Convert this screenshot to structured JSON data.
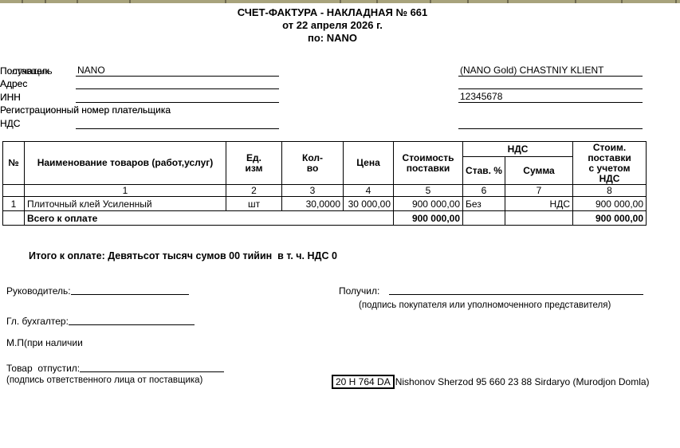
{
  "document": {
    "title_line1": "СЧЕТ-ФАКТУРА - НАКЛАДНАЯ № 661",
    "title_line2": "от 22 апреля 2026 г.",
    "title_line3": "по: NANO",
    "total_in_words": "Итого к оплате: Девятьсот тысяч сумов 00 тийин  в т. ч. НДС 0"
  },
  "supplier": {
    "label": "Поставщик",
    "name": "NANO",
    "address_label": "Адрес",
    "address": "",
    "inn_label": "ИНН",
    "inn": "",
    "reg_number_label": "Регистрационный номер плательщика",
    "vat_label": "НДС",
    "vat": ""
  },
  "receiver": {
    "label": "Получатель",
    "name": "(NANO Gold) CHASTNIY KLIENT",
    "address_label": "Адрес",
    "address": "",
    "inn_label": "ИНН",
    "inn": "12345678",
    "reg_number_label": "Регистрационный номер плательщика",
    "vat_label": "НДС",
    "vat": ""
  },
  "table": {
    "headers": {
      "num": "№",
      "name": "Наименование товаров (работ,услуг)",
      "unit": "Ед.\nизм",
      "qty": "Кол-\nво",
      "price": "Цена",
      "amount": "Стоимость\nпоставки",
      "vat_group": "НДС",
      "vat_rate": "Став. %",
      "vat_sum": "Сумма",
      "total": "Стоим.\nпоставки\nс учетом\nНДС"
    },
    "col_numbers": [
      "1",
      "2",
      "3",
      "4",
      "5",
      "6",
      "7",
      "8"
    ],
    "rows": [
      {
        "num": "1",
        "name": "Плиточный клей Усиленный",
        "unit": "шт",
        "qty": "30,0000",
        "price": "30 000,00",
        "amount": "900 000,00",
        "vat_rate": "Без",
        "vat_sum": "НДС",
        "total": "900 000,00"
      }
    ],
    "totals": {
      "label": "Всего к оплате",
      "amount": "900 000,00",
      "total": "900 000,00"
    }
  },
  "signatures": {
    "director_label": "Руководитель:",
    "accountant_label": "Гл. бухгалтер:",
    "stamp_label": "М.П(при наличии",
    "released_label": "Товар  отпустил:",
    "released_note": "(подпись ответственного лица от поставщика)",
    "received_label": "Получил:",
    "received_note": "(подпись покупателя или уполномоченного представителя)"
  },
  "footer": {
    "vehicle_plate": "20 H 764 DA",
    "agent_info": "Nishonov Sherzod 95 660 23 88 Sirdaryo (Murodjon Domla)"
  },
  "colors": {
    "strip_fill": "#A8A37C",
    "strip_divider": "#6F6A50",
    "text": "#000000",
    "background": "#FFFFFF"
  }
}
